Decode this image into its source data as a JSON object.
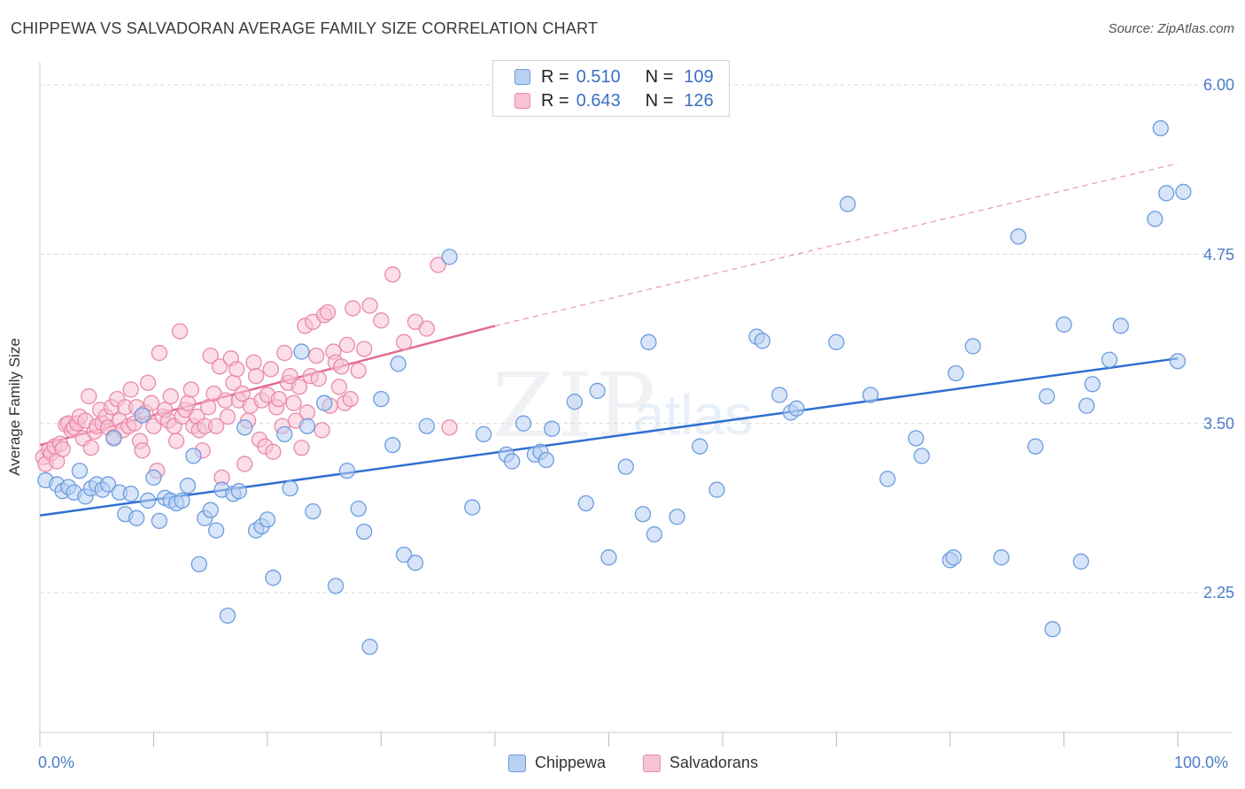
{
  "header": {
    "title": "CHIPPEWA VS SALVADORAN AVERAGE FAMILY SIZE CORRELATION CHART",
    "source": "Source: ZipAtlas.com"
  },
  "legend": {
    "r_label": "R =",
    "n_label": "N =",
    "series1": {
      "r": "0.510",
      "n": "109"
    },
    "series2": {
      "r": "0.643",
      "n": "126"
    }
  },
  "watermark": {
    "zip": "ZIP",
    "atlas": "atlas"
  },
  "colors": {
    "blue_fill": "#b8d0f2",
    "blue_stroke": "#6b9ce0",
    "blue_line": "#2f6fd0",
    "pink_fill": "#f7c3d3",
    "pink_stroke": "#e98aa9",
    "pink_line": "#e56a90"
  },
  "chart_data": {
    "type": "scatter",
    "ylabel": "Average Family Size",
    "x_tick_labels": [
      "0.0%",
      "100.0%"
    ],
    "y_tick_labels": [
      "6.00",
      "4.75",
      "3.50",
      "2.25"
    ],
    "y_ticks": [
      6.0,
      4.75,
      3.5,
      2.25
    ],
    "xlim": [
      0,
      100
    ],
    "ylim": [
      1.2,
      6.15
    ],
    "grid": true,
    "legend_position": "top-center",
    "series": [
      {
        "name": "Chippewa",
        "color": "#6b9ce0",
        "trend": {
          "x": [
            0,
            100
          ],
          "y": [
            2.82,
            3.98
          ]
        },
        "points": [
          [
            0.5,
            3.08
          ],
          [
            1.5,
            3.05
          ],
          [
            2,
            3.0
          ],
          [
            2.5,
            3.03
          ],
          [
            3,
            2.99
          ],
          [
            3.5,
            3.15
          ],
          [
            4,
            2.96
          ],
          [
            4.5,
            3.02
          ],
          [
            5,
            3.05
          ],
          [
            5.5,
            3.01
          ],
          [
            6,
            3.05
          ],
          [
            6.5,
            3.39
          ],
          [
            7,
            2.99
          ],
          [
            7.5,
            2.83
          ],
          [
            8,
            2.98
          ],
          [
            8.5,
            2.8
          ],
          [
            9,
            3.56
          ],
          [
            9.5,
            2.93
          ],
          [
            10,
            3.1
          ],
          [
            10.5,
            2.78
          ],
          [
            11,
            2.95
          ],
          [
            11.5,
            2.93
          ],
          [
            12,
            2.91
          ],
          [
            12.5,
            2.93
          ],
          [
            13,
            3.04
          ],
          [
            13.5,
            3.26
          ],
          [
            14,
            2.46
          ],
          [
            14.5,
            2.8
          ],
          [
            15,
            2.86
          ],
          [
            15.5,
            2.71
          ],
          [
            16,
            3.01
          ],
          [
            16.5,
            2.08
          ],
          [
            17,
            2.98
          ],
          [
            17.5,
            3.0
          ],
          [
            18,
            3.47
          ],
          [
            19,
            2.71
          ],
          [
            19.5,
            2.74
          ],
          [
            20,
            2.79
          ],
          [
            20.5,
            2.36
          ],
          [
            21.5,
            3.42
          ],
          [
            22,
            3.02
          ],
          [
            23,
            4.03
          ],
          [
            23.5,
            3.48
          ],
          [
            24,
            2.85
          ],
          [
            25,
            3.65
          ],
          [
            26,
            2.3
          ],
          [
            27,
            3.15
          ],
          [
            28,
            2.87
          ],
          [
            28.5,
            2.7
          ],
          [
            29,
            1.85
          ],
          [
            30,
            3.68
          ],
          [
            31,
            3.34
          ],
          [
            31.5,
            3.94
          ],
          [
            32,
            2.53
          ],
          [
            33,
            2.47
          ],
          [
            34,
            3.48
          ],
          [
            36,
            4.73
          ],
          [
            38,
            2.88
          ],
          [
            39,
            3.42
          ],
          [
            41,
            3.27
          ],
          [
            41.5,
            3.22
          ],
          [
            42.5,
            3.5
          ],
          [
            43.5,
            3.27
          ],
          [
            44,
            3.29
          ],
          [
            44.5,
            3.23
          ],
          [
            45,
            3.46
          ],
          [
            47,
            3.66
          ],
          [
            48,
            2.91
          ],
          [
            49,
            3.74
          ],
          [
            50,
            2.51
          ],
          [
            51.5,
            3.18
          ],
          [
            53,
            2.83
          ],
          [
            53.5,
            4.1
          ],
          [
            54,
            2.68
          ],
          [
            56,
            2.81
          ],
          [
            58,
            3.33
          ],
          [
            59.5,
            3.01
          ],
          [
            63,
            4.14
          ],
          [
            63.5,
            4.11
          ],
          [
            65,
            3.71
          ],
          [
            66,
            3.58
          ],
          [
            66.5,
            3.61
          ],
          [
            70,
            4.1
          ],
          [
            71,
            5.12
          ],
          [
            73,
            3.71
          ],
          [
            74.5,
            3.09
          ],
          [
            77,
            3.39
          ],
          [
            77.5,
            3.26
          ],
          [
            80,
            2.49
          ],
          [
            80.3,
            2.51
          ],
          [
            80.5,
            3.87
          ],
          [
            82,
            4.07
          ],
          [
            84.5,
            2.51
          ],
          [
            86,
            4.88
          ],
          [
            87.5,
            3.33
          ],
          [
            88.5,
            3.7
          ],
          [
            89,
            1.98
          ],
          [
            90,
            4.23
          ],
          [
            91.5,
            2.48
          ],
          [
            92,
            3.63
          ],
          [
            92.5,
            3.79
          ],
          [
            94,
            3.97
          ],
          [
            95,
            4.22
          ],
          [
            98,
            5.01
          ],
          [
            98.5,
            5.68
          ],
          [
            99,
            5.2
          ],
          [
            100,
            3.96
          ],
          [
            100.5,
            5.21
          ]
        ]
      },
      {
        "name": "Salvadorans",
        "color": "#e98aa9",
        "trend": {
          "x": [
            0,
            40
          ],
          "y": [
            3.34,
            4.22
          ]
        },
        "trend_extension": {
          "x": [
            40,
            100
          ],
          "y": [
            4.22,
            5.42
          ]
        },
        "points": [
          [
            0.3,
            3.25
          ],
          [
            0.5,
            3.2
          ],
          [
            0.8,
            3.3
          ],
          [
            1,
            3.28
          ],
          [
            1.3,
            3.33
          ],
          [
            1.5,
            3.22
          ],
          [
            1.8,
            3.35
          ],
          [
            2,
            3.31
          ],
          [
            2.3,
            3.49
          ],
          [
            2.5,
            3.5
          ],
          [
            2.8,
            3.45
          ],
          [
            3,
            3.47
          ],
          [
            3.3,
            3.5
          ],
          [
            3.5,
            3.55
          ],
          [
            3.8,
            3.39
          ],
          [
            4,
            3.52
          ],
          [
            4.3,
            3.7
          ],
          [
            4.5,
            3.32
          ],
          [
            4.8,
            3.44
          ],
          [
            5,
            3.48
          ],
          [
            5.3,
            3.6
          ],
          [
            5.5,
            3.5
          ],
          [
            5.8,
            3.55
          ],
          [
            6,
            3.47
          ],
          [
            6.3,
            3.62
          ],
          [
            6.5,
            3.4
          ],
          [
            6.8,
            3.68
          ],
          [
            7,
            3.52
          ],
          [
            7.3,
            3.45
          ],
          [
            7.5,
            3.62
          ],
          [
            7.8,
            3.48
          ],
          [
            8,
            3.75
          ],
          [
            8.3,
            3.5
          ],
          [
            8.5,
            3.62
          ],
          [
            8.8,
            3.37
          ],
          [
            9,
            3.3
          ],
          [
            9.3,
            3.58
          ],
          [
            9.5,
            3.8
          ],
          [
            9.8,
            3.65
          ],
          [
            10,
            3.48
          ],
          [
            10.3,
            3.15
          ],
          [
            10.5,
            4.02
          ],
          [
            10.8,
            3.55
          ],
          [
            11,
            3.6
          ],
          [
            11.3,
            3.52
          ],
          [
            11.5,
            3.7
          ],
          [
            11.8,
            3.48
          ],
          [
            12,
            3.37
          ],
          [
            12.3,
            4.18
          ],
          [
            12.5,
            3.55
          ],
          [
            12.8,
            3.6
          ],
          [
            13,
            3.65
          ],
          [
            13.3,
            3.75
          ],
          [
            13.5,
            3.48
          ],
          [
            13.8,
            3.55
          ],
          [
            14,
            3.45
          ],
          [
            14.3,
            3.3
          ],
          [
            14.5,
            3.48
          ],
          [
            14.8,
            3.62
          ],
          [
            15,
            4.0
          ],
          [
            15.3,
            3.72
          ],
          [
            15.5,
            3.48
          ],
          [
            15.8,
            3.92
          ],
          [
            16,
            3.1
          ],
          [
            16.3,
            3.67
          ],
          [
            16.5,
            3.55
          ],
          [
            16.8,
            3.98
          ],
          [
            17,
            3.8
          ],
          [
            17.3,
            3.9
          ],
          [
            17.5,
            3.67
          ],
          [
            17.8,
            3.72
          ],
          [
            18,
            3.2
          ],
          [
            18.3,
            3.52
          ],
          [
            18.5,
            3.63
          ],
          [
            18.8,
            3.95
          ],
          [
            19,
            3.85
          ],
          [
            19.3,
            3.38
          ],
          [
            19.5,
            3.67
          ],
          [
            19.8,
            3.33
          ],
          [
            20,
            3.71
          ],
          [
            20.3,
            3.9
          ],
          [
            20.5,
            3.29
          ],
          [
            20.8,
            3.62
          ],
          [
            21,
            3.68
          ],
          [
            21.3,
            3.48
          ],
          [
            21.5,
            4.02
          ],
          [
            21.8,
            3.8
          ],
          [
            22,
            3.85
          ],
          [
            22.3,
            3.65
          ],
          [
            22.5,
            3.52
          ],
          [
            22.8,
            3.77
          ],
          [
            23,
            3.32
          ],
          [
            23.3,
            4.22
          ],
          [
            23.5,
            3.58
          ],
          [
            23.8,
            3.85
          ],
          [
            24,
            4.25
          ],
          [
            24.3,
            4.0
          ],
          [
            24.5,
            3.83
          ],
          [
            24.8,
            3.45
          ],
          [
            25,
            4.3
          ],
          [
            25.3,
            4.32
          ],
          [
            25.5,
            3.63
          ],
          [
            25.8,
            4.03
          ],
          [
            26,
            3.95
          ],
          [
            26.3,
            3.77
          ],
          [
            26.5,
            3.92
          ],
          [
            26.8,
            3.65
          ],
          [
            27,
            4.08
          ],
          [
            27.3,
            3.68
          ],
          [
            27.5,
            4.35
          ],
          [
            28,
            3.89
          ],
          [
            28.5,
            4.05
          ],
          [
            29,
            4.37
          ],
          [
            30,
            4.26
          ],
          [
            31,
            4.6
          ],
          [
            32,
            4.1
          ],
          [
            33,
            4.25
          ],
          [
            34,
            4.2
          ],
          [
            35,
            4.67
          ],
          [
            36,
            3.47
          ]
        ]
      }
    ]
  }
}
